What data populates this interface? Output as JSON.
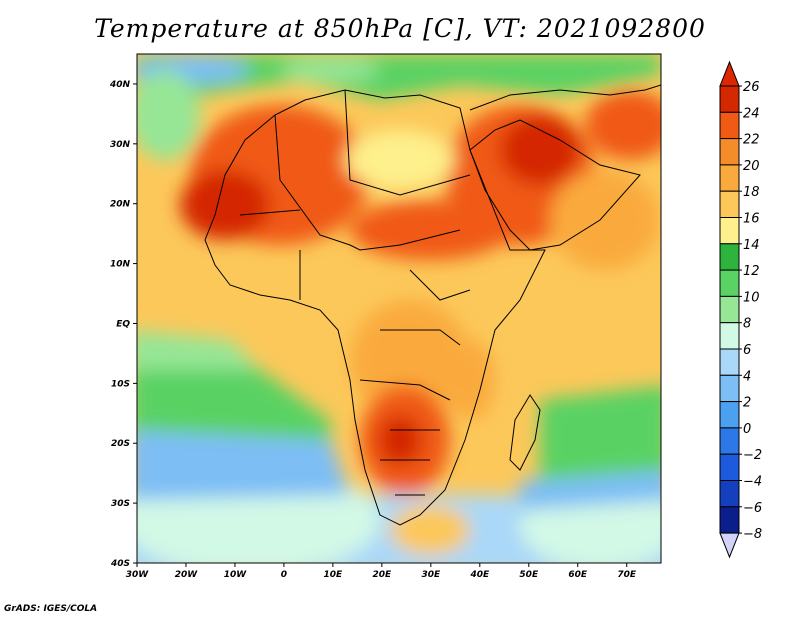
{
  "title": "Temperature at 850hPa [C], VT: 2021092800",
  "credit": "GrADS: IGES/COLA",
  "chart_data": {
    "type": "heatmap",
    "title": "Temperature at 850hPa [C], VT: 2021092800",
    "variable": "Temperature at 850hPa",
    "units": "C",
    "valid_time": "2021092800",
    "xlim": [
      -30,
      77
    ],
    "ylim": [
      -40,
      45
    ],
    "lon_ticks": [
      {
        "value": -30,
        "label": "30W"
      },
      {
        "value": -20,
        "label": "20W"
      },
      {
        "value": -10,
        "label": "10W"
      },
      {
        "value": 0,
        "label": "0"
      },
      {
        "value": 10,
        "label": "10E"
      },
      {
        "value": 20,
        "label": "20E"
      },
      {
        "value": 30,
        "label": "30E"
      },
      {
        "value": 40,
        "label": "40E"
      },
      {
        "value": 50,
        "label": "50E"
      },
      {
        "value": 60,
        "label": "60E"
      },
      {
        "value": 70,
        "label": "70E"
      }
    ],
    "lat_ticks": [
      {
        "value": 40,
        "label": "40N"
      },
      {
        "value": 30,
        "label": "30N"
      },
      {
        "value": 20,
        "label": "20N"
      },
      {
        "value": 10,
        "label": "10N"
      },
      {
        "value": 0,
        "label": "EQ"
      },
      {
        "value": -10,
        "label": "10S"
      },
      {
        "value": -20,
        "label": "20S"
      },
      {
        "value": -30,
        "label": "30S"
      },
      {
        "value": -40,
        "label": "40S"
      }
    ],
    "colorbar": {
      "levels": [
        26,
        24,
        22,
        20,
        18,
        16,
        14,
        12,
        10,
        8,
        6,
        4,
        2,
        0,
        -2,
        -4,
        -6,
        -8
      ],
      "labels": [
        "26",
        "24",
        "22",
        "20",
        "18",
        "16",
        "14",
        "12",
        "10",
        "8",
        "6",
        "4",
        "2",
        "0",
        "−2",
        "−4",
        "−6",
        "−8"
      ],
      "colors": [
        "#d42800",
        "#f05a14",
        "#f58c2a",
        "#faaa3c",
        "#fcc85a",
        "#fef08c",
        "#2eb43c",
        "#5ad264",
        "#96e696",
        "#d2f8e6",
        "#aad8f8",
        "#7dbef5",
        "#4ba0f0",
        "#2d78e6",
        "#1e5adc",
        "#1440be",
        "#0a1e8c"
      ],
      "top_triangle_color": "#dc2800",
      "bottom_triangle_color": "#d2d2fa"
    }
  }
}
